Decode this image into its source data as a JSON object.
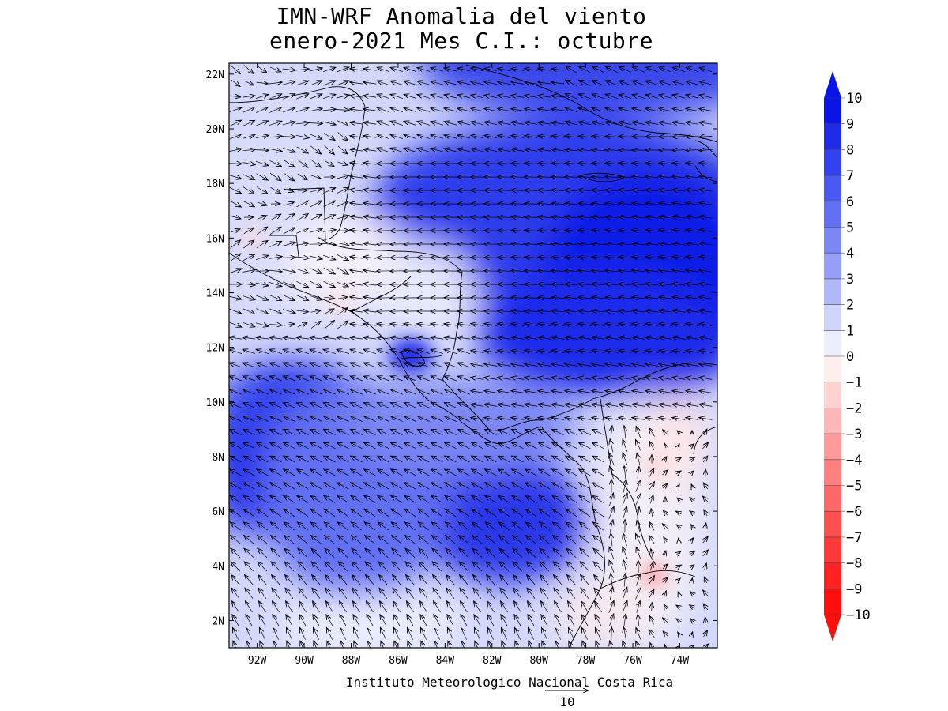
{
  "title": {
    "line1": "IMN-WRF Anomalia del viento",
    "line2": "enero-2021 Mes C.I.: octubre"
  },
  "map": {
    "lon_range": [
      -93.2,
      -72.4
    ],
    "lat_range": [
      1.0,
      22.4
    ],
    "lat_ticks": [
      "2N",
      "4N",
      "6N",
      "8N",
      "10N",
      "12N",
      "14N",
      "16N",
      "18N",
      "20N",
      "22N"
    ],
    "lon_ticks": [
      "92W",
      "90W",
      "88W",
      "86W",
      "84W",
      "82W",
      "80W",
      "78W",
      "76W",
      "74W"
    ]
  },
  "colorbar": {
    "labels": [
      "10",
      "9",
      "8",
      "7",
      "6",
      "5",
      "4",
      "3",
      "2",
      "1",
      "0",
      "-1",
      "-2",
      "-3",
      "-4",
      "-5",
      "-6",
      "-7",
      "-8",
      "-9",
      "-10"
    ],
    "colors": [
      "#0a14e6",
      "#1e2cea",
      "#3342ee",
      "#4a5af1",
      "#6270f3",
      "#7b87f5",
      "#959ff7",
      "#b0b8fa",
      "#cfd4fc",
      "#eceefe",
      "#ffeeee",
      "#ffd2d2",
      "#ffb6b6",
      "#ff9a9a",
      "#ff8080",
      "#ff6868",
      "#ff5050",
      "#ff3838",
      "#ff2222",
      "#ff0e0e"
    ]
  },
  "credit": "Instituto Meteorologico Nacional Costa Rica",
  "reference_vector": {
    "label": "10"
  }
}
